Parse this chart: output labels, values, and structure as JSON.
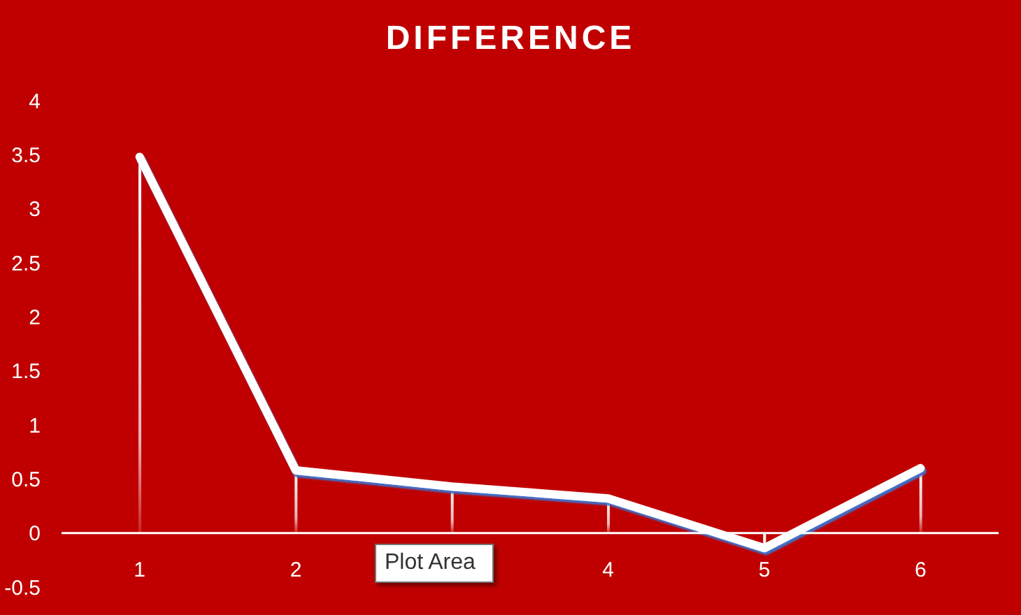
{
  "chart_data": {
    "type": "line",
    "title": "DIFFERENCE",
    "categories": [
      "1",
      "2",
      null,
      "4",
      "5",
      "6"
    ],
    "series": [
      {
        "color": "#ffffff",
        "values": [
          3.48,
          0.58,
          0.43,
          0.32,
          -0.14,
          0.6
        ]
      },
      {
        "type": "bar",
        "color": "#ffffff",
        "values": [
          3.48,
          0.58,
          0.43,
          0.32,
          -0.14,
          0.6
        ]
      }
    ],
    "ylim": [
      -0.5,
      4
    ],
    "yticks": [
      -0.5,
      0,
      0.5,
      1,
      1.5,
      2,
      2.5,
      3,
      3.5,
      4
    ],
    "annotations": [
      "Plot Area"
    ]
  }
}
